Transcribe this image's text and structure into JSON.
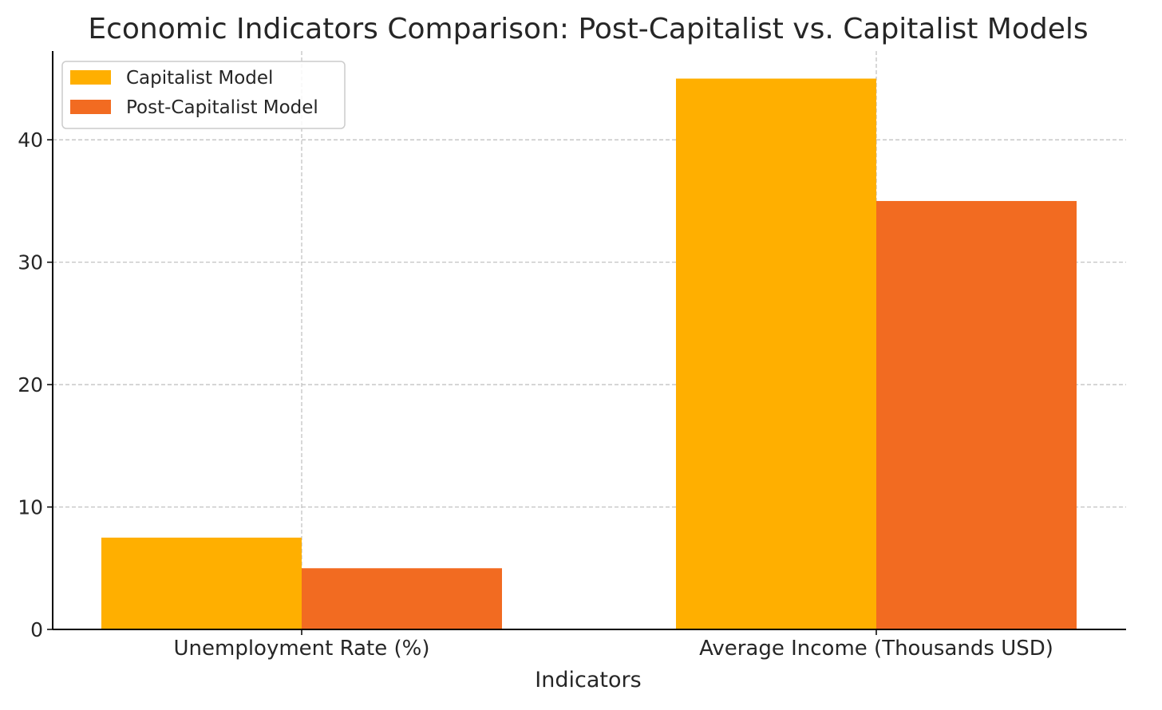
{
  "chart_data": {
    "type": "bar",
    "title": "Economic Indicators Comparison: Post-Capitalist vs. Capitalist Models",
    "xlabel": "Indicators",
    "ylabel": "",
    "categories": [
      "Unemployment Rate (%)",
      "Average Income (Thousands USD)"
    ],
    "series": [
      {
        "name": "Capitalist Model",
        "values": [
          7.5,
          45
        ],
        "color": "#FFAF00"
      },
      {
        "name": "Post-Capitalist Model",
        "values": [
          5,
          35
        ],
        "color": "#F26B21"
      }
    ],
    "ylim": [
      0,
      47.25
    ],
    "yticks": [
      0,
      10,
      20,
      30,
      40
    ],
    "grid": true,
    "legend_position": "top-left"
  }
}
